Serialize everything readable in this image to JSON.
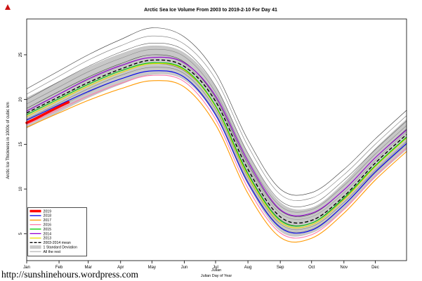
{
  "page": {
    "footer_url": "http://sunshinehours.wordpress.com"
  },
  "chart_data": {
    "type": "line",
    "title": "Arctic Sea Ice Volume From 2003 to 2019-2-10  For Day 41",
    "xlabel_line1": "Julian",
    "xlabel_line2": "Julian Day of Year",
    "ylabel": "Arctic Ice Thickness in 1000s of cubic km",
    "x_unit": "julian_day_of_year",
    "xlim": [
      1,
      365
    ],
    "ylim": [
      2,
      29
    ],
    "y_ticks": [
      5,
      10,
      15,
      20,
      25
    ],
    "x_ticks": {
      "days": [
        1,
        32,
        60,
        91,
        121,
        152,
        182,
        213,
        244,
        274,
        305,
        335
      ],
      "labels": [
        "Jan",
        "Feb",
        "Mar",
        "Apr",
        "May",
        "Jun",
        "Jul",
        "Aug",
        "Sep",
        "Oct",
        "Nov",
        "Dec"
      ]
    },
    "grid": false,
    "legend_position": "bottom-left",
    "days": [
      1,
      32,
      60,
      91,
      121,
      152,
      182,
      213,
      244,
      274,
      305,
      335,
      365
    ],
    "mean_2003_2014": [
      18.5,
      20.3,
      21.9,
      23.4,
      24.4,
      23.7,
      19.8,
      12.2,
      6.9,
      6.5,
      9.2,
      12.9,
      16.1
    ],
    "std_dev": [
      1.7,
      1.7,
      1.7,
      1.7,
      1.6,
      1.5,
      1.6,
      1.7,
      1.6,
      1.4,
      1.5,
      1.6,
      1.7
    ],
    "band_color": "#c8c8c8",
    "series": [
      {
        "name": "2019",
        "color": "#FF0000",
        "width": 3.5,
        "days": [
          1,
          10,
          20,
          32,
          41
        ],
        "values": [
          17.4,
          17.9,
          18.5,
          19.2,
          19.7
        ]
      },
      {
        "name": "2018",
        "color": "#0000EE",
        "width": 1.1,
        "values": [
          17.7,
          19.4,
          20.9,
          22.3,
          23.2,
          22.5,
          18.3,
          10.7,
          5.7,
          5.4,
          8.2,
          11.9,
          15.1
        ]
      },
      {
        "name": "2017",
        "color": "#FF9900",
        "width": 1.1,
        "values": [
          16.9,
          18.5,
          19.9,
          21.2,
          22.1,
          21.4,
          17.2,
          9.5,
          4.6,
          4.5,
          7.3,
          11.0,
          14.2
        ]
      },
      {
        "name": "2016",
        "color": "#FF7BAC",
        "width": 1.1,
        "values": [
          17.2,
          18.9,
          20.4,
          21.8,
          22.7,
          22.0,
          17.8,
          10.1,
          5.1,
          4.9,
          7.7,
          11.4,
          14.6
        ]
      },
      {
        "name": "2015",
        "color": "#00CC00",
        "width": 1.1,
        "values": [
          18.3,
          20.1,
          21.7,
          23.2,
          24.1,
          23.4,
          19.3,
          11.7,
          6.5,
          6.2,
          9.0,
          12.6,
          15.8
        ]
      },
      {
        "name": "2014",
        "color": "#9400D3",
        "width": 1.1,
        "values": [
          18.7,
          20.6,
          22.3,
          23.8,
          24.7,
          24.1,
          20.4,
          13.1,
          7.7,
          7.3,
          9.9,
          13.5,
          16.6
        ]
      },
      {
        "name": "2013",
        "color": "#EEDD00",
        "width": 1.1,
        "values": [
          18.1,
          19.9,
          21.5,
          23.0,
          24.0,
          23.3,
          19.2,
          11.5,
          6.3,
          6.0,
          8.8,
          12.5,
          15.7
        ]
      }
    ],
    "rest_series": {
      "label": "All the rest",
      "colors": [
        "#333333",
        "#777777",
        "#555555",
        "#888888",
        "#444444",
        "#999999",
        "#666666",
        "#7a7a7a",
        "#8a8a8a"
      ],
      "values": [
        [
          21.2,
          23.2,
          25.0,
          26.7,
          28.0,
          27.0,
          23.0,
          15.5,
          10.0,
          9.6,
          12.2,
          15.6,
          18.8
        ],
        [
          20.6,
          22.6,
          24.4,
          26.0,
          27.1,
          26.2,
          22.3,
          14.8,
          9.4,
          9.0,
          11.6,
          15.0,
          18.2
        ],
        [
          20.0,
          22.0,
          23.7,
          25.3,
          26.3,
          25.5,
          21.5,
          14.0,
          8.7,
          8.3,
          11.0,
          14.4,
          17.6
        ],
        [
          19.5,
          21.4,
          23.1,
          24.6,
          25.6,
          24.8,
          20.8,
          13.3,
          8.1,
          7.7,
          10.4,
          13.9,
          17.1
        ],
        [
          19.0,
          20.9,
          22.5,
          24.0,
          25.0,
          24.2,
          20.2,
          12.8,
          7.6,
          7.2,
          9.9,
          13.5,
          16.7
        ],
        [
          18.8,
          20.6,
          22.2,
          23.7,
          24.7,
          24.0,
          19.9,
          12.5,
          7.3,
          6.9,
          9.6,
          13.2,
          16.4
        ],
        [
          18.1,
          19.9,
          21.5,
          23.0,
          24.0,
          23.2,
          19.3,
          11.8,
          6.6,
          6.2,
          8.9,
          12.5,
          15.7
        ],
        [
          17.8,
          19.6,
          21.2,
          22.7,
          23.6,
          22.9,
          18.9,
          11.3,
          6.1,
          5.8,
          8.5,
          12.1,
          15.3
        ],
        [
          17.5,
          19.2,
          20.8,
          22.3,
          23.2,
          22.5,
          18.5,
          10.9,
          5.8,
          5.5,
          8.2,
          11.8,
          15.0
        ]
      ]
    },
    "legend": [
      {
        "label": "2019",
        "color": "#FF0000",
        "lw": 3.5
      },
      {
        "label": "2018",
        "color": "#0000EE",
        "lw": 1.3
      },
      {
        "label": "2017",
        "color": "#FF9900",
        "lw": 1.3
      },
      {
        "label": "2016",
        "color": "#FF7BAC",
        "lw": 1.3
      },
      {
        "label": "2015",
        "color": "#00CC00",
        "lw": 1.3
      },
      {
        "label": "2014",
        "color": "#9400D3",
        "lw": 1.3
      },
      {
        "label": "2013",
        "color": "#EEDD00",
        "lw": 1.3
      },
      {
        "label": "2003-2014 mean",
        "color": "#000000",
        "lw": 1.3,
        "dash": true
      },
      {
        "label": "1 Standard Deviation",
        "color": "#c8c8c8",
        "band": true
      },
      {
        "label": "All the rest",
        "color": "#888888",
        "lw": 0.8
      }
    ]
  }
}
